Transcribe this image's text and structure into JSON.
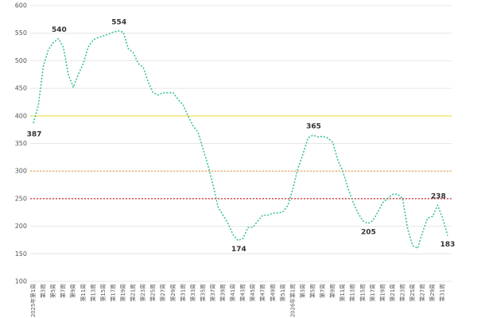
{
  "chart_data": {
    "type": "line",
    "categories": [
      "2025年第1周",
      null,
      "第3周",
      null,
      "第5周",
      null,
      "第7周",
      null,
      "第9周",
      null,
      "第11周",
      null,
      "第13周",
      null,
      "第15周",
      null,
      "第17周",
      null,
      "第19周",
      null,
      "第21周",
      null,
      "第23周",
      null,
      "第25周",
      null,
      "第27周",
      null,
      "第29周",
      null,
      "第31周",
      null,
      "第33周",
      null,
      "第35周",
      null,
      "第37周",
      null,
      "第39周",
      null,
      "第41周",
      null,
      "第43周",
      null,
      "第45周",
      null,
      "第47周",
      null,
      "第49周",
      null,
      "第51周",
      null,
      "2026年第1周",
      null,
      "第3周",
      null,
      "第5周",
      null,
      "第7周",
      null,
      "第9周",
      null,
      "第11周",
      null,
      "第13周",
      null,
      "第15周",
      null,
      "第17周",
      null,
      "第19周",
      null,
      "第21周",
      null,
      "第23周",
      null,
      "第25周",
      null,
      "第27周",
      null,
      "第29周",
      null,
      "第31周",
      null
    ],
    "series": [
      {
        "color": "#3dbf9f",
        "values": [
          387,
          420,
          490,
          520,
          533,
          540,
          525,
          475,
          452,
          475,
          495,
          525,
          538,
          542,
          545,
          548,
          552,
          554,
          552,
          522,
          515,
          495,
          488,
          462,
          442,
          438,
          442,
          442,
          442,
          430,
          420,
          400,
          382,
          370,
          340,
          310,
          275,
          235,
          220,
          205,
          185,
          174,
          178,
          198,
          198,
          210,
          220,
          220,
          224,
          224,
          226,
          238,
          268,
          305,
          330,
          360,
          365,
          362,
          363,
          360,
          352,
          320,
          300,
          270,
          245,
          225,
          210,
          205,
          210,
          225,
          243,
          250,
          258,
          258,
          250,
          195,
          165,
          160,
          190,
          215,
          218,
          238,
          215,
          183
        ]
      }
    ],
    "labeled_points": [
      0,
      5,
      17,
      41,
      56,
      67,
      81,
      83
    ],
    "reference_lines": [
      {
        "value": 400,
        "color": "#f2e24a",
        "style": "solid"
      },
      {
        "value": 300,
        "color": "#f0a030",
        "style": "dotted"
      },
      {
        "value": 250,
        "color": "#d02a2a",
        "style": "dotted"
      }
    ],
    "ylim": [
      100,
      600
    ],
    "yticks": [
      100,
      150,
      200,
      250,
      300,
      350,
      400,
      450,
      500,
      550,
      600
    ],
    "grid": true
  }
}
